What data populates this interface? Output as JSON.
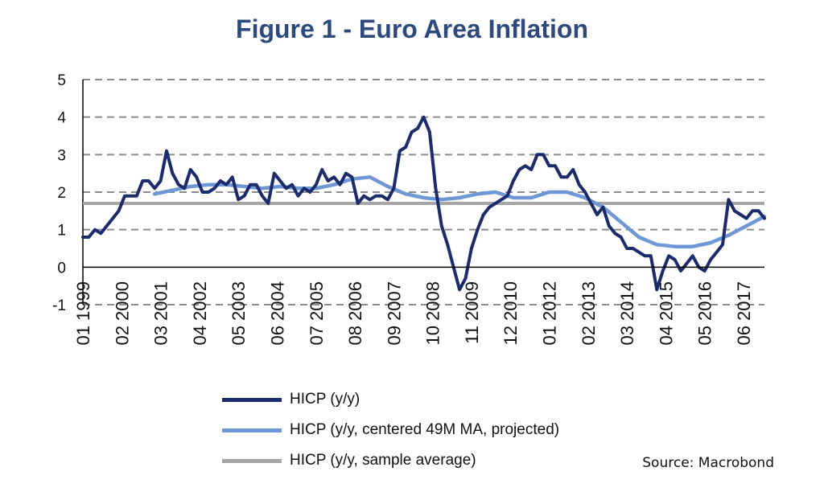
{
  "colors": {
    "title": "#2e4a7d",
    "hicp": "#1b2b6b",
    "ma": "#6e97d6",
    "avg": "#a6a6a6",
    "grid": "#8c8c8c"
  },
  "chart_data": {
    "type": "line",
    "title": "Figure 1 - Euro Area Inflation",
    "xlabel": "",
    "ylabel": "",
    "ylim": [
      -1,
      5
    ],
    "yticks": [
      "5",
      "4",
      "3",
      "2",
      "1",
      "0",
      "-1"
    ],
    "x_tick_labels": [
      "01 1999",
      "02 2000",
      "03 2001",
      "04 2002",
      "05 2003",
      "06 2004",
      "07 2005",
      "08 2006",
      "09 2007",
      "10 2008",
      "11 2009",
      "12 2010",
      "01 2012",
      "02 2013",
      "03 2014",
      "04 2015",
      "05 2016",
      "06 2017"
    ],
    "x_range": [
      "1999-01",
      "2018-01"
    ],
    "grid": true,
    "legend_position": "bottom",
    "series": [
      {
        "name": "HICP (y/y)",
        "points": [
          [
            "1999-01",
            0.8
          ],
          [
            "1999-03",
            0.8
          ],
          [
            "1999-05",
            1.0
          ],
          [
            "1999-07",
            0.9
          ],
          [
            "1999-09",
            1.1
          ],
          [
            "1999-11",
            1.3
          ],
          [
            "2000-01",
            1.5
          ],
          [
            "2000-03",
            1.9
          ],
          [
            "2000-05",
            1.9
          ],
          [
            "2000-07",
            1.9
          ],
          [
            "2000-09",
            2.3
          ],
          [
            "2000-11",
            2.3
          ],
          [
            "2001-01",
            2.1
          ],
          [
            "2001-03",
            2.3
          ],
          [
            "2001-05",
            3.1
          ],
          [
            "2001-07",
            2.5
          ],
          [
            "2001-09",
            2.2
          ],
          [
            "2001-11",
            2.1
          ],
          [
            "2002-01",
            2.6
          ],
          [
            "2002-03",
            2.4
          ],
          [
            "2002-05",
            2.0
          ],
          [
            "2002-07",
            2.0
          ],
          [
            "2002-09",
            2.1
          ],
          [
            "2002-11",
            2.3
          ],
          [
            "2003-01",
            2.2
          ],
          [
            "2003-03",
            2.4
          ],
          [
            "2003-05",
            1.8
          ],
          [
            "2003-07",
            1.9
          ],
          [
            "2003-09",
            2.2
          ],
          [
            "2003-11",
            2.2
          ],
          [
            "2004-01",
            1.9
          ],
          [
            "2004-03",
            1.7
          ],
          [
            "2004-05",
            2.5
          ],
          [
            "2004-07",
            2.3
          ],
          [
            "2004-09",
            2.1
          ],
          [
            "2004-11",
            2.2
          ],
          [
            "2005-01",
            1.9
          ],
          [
            "2005-03",
            2.1
          ],
          [
            "2005-05",
            2.0
          ],
          [
            "2005-07",
            2.2
          ],
          [
            "2005-09",
            2.6
          ],
          [
            "2005-11",
            2.3
          ],
          [
            "2006-01",
            2.4
          ],
          [
            "2006-03",
            2.2
          ],
          [
            "2006-05",
            2.5
          ],
          [
            "2006-07",
            2.4
          ],
          [
            "2006-09",
            1.7
          ],
          [
            "2006-11",
            1.9
          ],
          [
            "2007-01",
            1.8
          ],
          [
            "2007-03",
            1.9
          ],
          [
            "2007-05",
            1.9
          ],
          [
            "2007-07",
            1.8
          ],
          [
            "2007-09",
            2.1
          ],
          [
            "2007-11",
            3.1
          ],
          [
            "2008-01",
            3.2
          ],
          [
            "2008-03",
            3.6
          ],
          [
            "2008-05",
            3.7
          ],
          [
            "2008-07",
            4.0
          ],
          [
            "2008-09",
            3.6
          ],
          [
            "2008-11",
            2.1
          ],
          [
            "2009-01",
            1.1
          ],
          [
            "2009-03",
            0.6
          ],
          [
            "2009-05",
            0.0
          ],
          [
            "2009-07",
            -0.6
          ],
          [
            "2009-09",
            -0.3
          ],
          [
            "2009-11",
            0.5
          ],
          [
            "2010-01",
            1.0
          ],
          [
            "2010-03",
            1.4
          ],
          [
            "2010-05",
            1.6
          ],
          [
            "2010-07",
            1.7
          ],
          [
            "2010-09",
            1.8
          ],
          [
            "2010-11",
            1.9
          ],
          [
            "2011-01",
            2.3
          ],
          [
            "2011-03",
            2.6
          ],
          [
            "2011-05",
            2.7
          ],
          [
            "2011-07",
            2.6
          ],
          [
            "2011-09",
            3.0
          ],
          [
            "2011-11",
            3.0
          ],
          [
            "2012-01",
            2.7
          ],
          [
            "2012-03",
            2.7
          ],
          [
            "2012-05",
            2.4
          ],
          [
            "2012-07",
            2.4
          ],
          [
            "2012-09",
            2.6
          ],
          [
            "2012-11",
            2.2
          ],
          [
            "2013-01",
            2.0
          ],
          [
            "2013-03",
            1.7
          ],
          [
            "2013-05",
            1.4
          ],
          [
            "2013-07",
            1.6
          ],
          [
            "2013-09",
            1.1
          ],
          [
            "2013-11",
            0.9
          ],
          [
            "2014-01",
            0.8
          ],
          [
            "2014-03",
            0.5
          ],
          [
            "2014-05",
            0.5
          ],
          [
            "2014-07",
            0.4
          ],
          [
            "2014-09",
            0.3
          ],
          [
            "2014-11",
            0.3
          ],
          [
            "2015-01",
            -0.6
          ],
          [
            "2015-03",
            -0.1
          ],
          [
            "2015-05",
            0.3
          ],
          [
            "2015-07",
            0.2
          ],
          [
            "2015-09",
            -0.1
          ],
          [
            "2015-11",
            0.1
          ],
          [
            "2016-01",
            0.3
          ],
          [
            "2016-03",
            0.0
          ],
          [
            "2016-05",
            -0.1
          ],
          [
            "2016-07",
            0.2
          ],
          [
            "2016-09",
            0.4
          ],
          [
            "2016-11",
            0.6
          ],
          [
            "2017-01",
            1.8
          ],
          [
            "2017-03",
            1.5
          ],
          [
            "2017-05",
            1.4
          ],
          [
            "2017-07",
            1.3
          ],
          [
            "2017-09",
            1.5
          ],
          [
            "2017-11",
            1.5
          ],
          [
            "2018-01",
            1.3
          ]
        ]
      },
      {
        "name": "HICP (y/y, centered 49M MA, projected)",
        "points": [
          [
            "2001-01",
            1.95
          ],
          [
            "2001-07",
            2.05
          ],
          [
            "2002-01",
            2.15
          ],
          [
            "2002-07",
            2.2
          ],
          [
            "2003-01",
            2.2
          ],
          [
            "2003-07",
            2.15
          ],
          [
            "2004-01",
            2.1
          ],
          [
            "2004-07",
            2.15
          ],
          [
            "2005-01",
            2.1
          ],
          [
            "2005-07",
            2.1
          ],
          [
            "2006-01",
            2.2
          ],
          [
            "2006-07",
            2.35
          ],
          [
            "2007-01",
            2.4
          ],
          [
            "2007-07",
            2.15
          ],
          [
            "2008-01",
            1.95
          ],
          [
            "2008-07",
            1.85
          ],
          [
            "2009-01",
            1.8
          ],
          [
            "2009-07",
            1.85
          ],
          [
            "2010-01",
            1.95
          ],
          [
            "2010-07",
            2.0
          ],
          [
            "2011-01",
            1.85
          ],
          [
            "2011-07",
            1.85
          ],
          [
            "2012-01",
            2.0
          ],
          [
            "2012-07",
            2.0
          ],
          [
            "2013-01",
            1.85
          ],
          [
            "2013-07",
            1.6
          ],
          [
            "2014-01",
            1.2
          ],
          [
            "2014-07",
            0.8
          ],
          [
            "2015-01",
            0.6
          ],
          [
            "2015-07",
            0.55
          ],
          [
            "2016-01",
            0.55
          ],
          [
            "2016-07",
            0.65
          ],
          [
            "2017-01",
            0.85
          ],
          [
            "2017-07",
            1.1
          ],
          [
            "2018-01",
            1.35
          ]
        ]
      },
      {
        "name": "HICP (y/y, sample average)",
        "points": [
          [
            "1999-01",
            1.7
          ],
          [
            "2018-01",
            1.7
          ]
        ]
      }
    ]
  },
  "source": "Source: Macrobond"
}
